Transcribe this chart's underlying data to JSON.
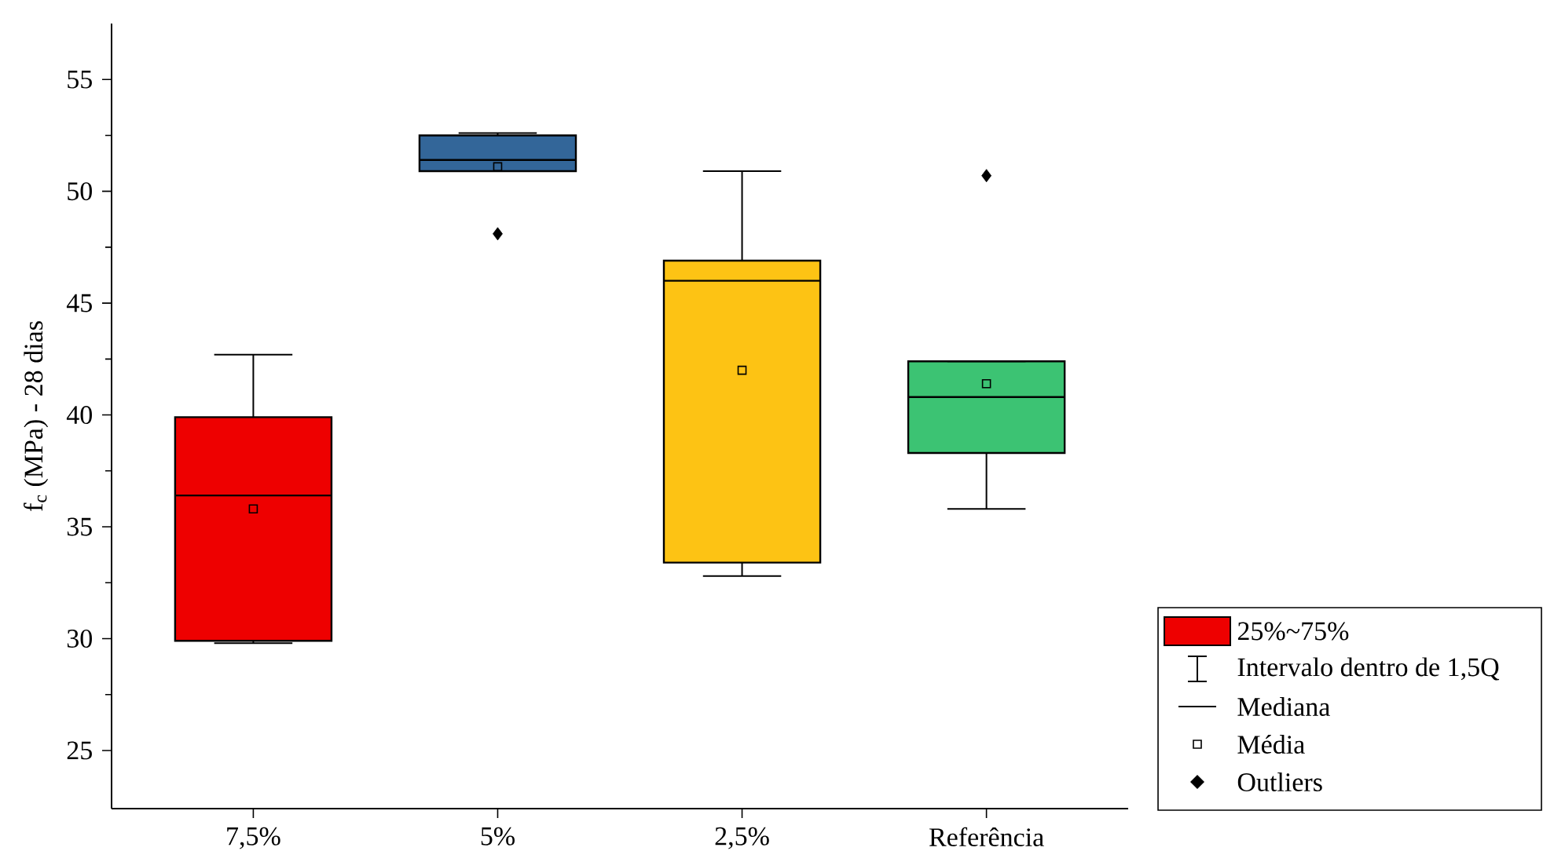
{
  "chart_data": {
    "type": "box",
    "ylabel": "f$_{c}$ (MPa) - 28 dias",
    "categories": [
      "7,5%",
      "5%",
      "2,5%",
      "Referência"
    ],
    "colors": [
      "#ee0000",
      "#336699",
      "#fdc314",
      "#3cc373"
    ],
    "boxes": [
      {
        "low": 29.8,
        "q1": 29.9,
        "median": 36.4,
        "q3": 39.9,
        "high": 42.7,
        "mean": 35.8
      },
      {
        "low": 50.9,
        "q1": 50.9,
        "median": 51.4,
        "q3": 52.5,
        "high": 52.6,
        "mean": 51.1,
        "outliers": [
          48.1
        ]
      },
      {
        "low": 32.8,
        "q1": 33.4,
        "median": 46.0,
        "q3": 46.9,
        "high": 50.9,
        "mean": 42.0
      },
      {
        "low": 35.8,
        "q1": 38.3,
        "median": 40.8,
        "q3": 42.4,
        "high": 42.4,
        "mean": 41.4,
        "outliers": [
          50.7
        ]
      }
    ],
    "ylim": [
      22.4,
      57.5
    ],
    "yticks": [
      25,
      30,
      35,
      40,
      45,
      50,
      55
    ],
    "annotations": [
      "25%~75%",
      "Intervalo dentro de 1,5Q",
      "Mediana",
      "Média",
      "Outliers"
    ]
  }
}
